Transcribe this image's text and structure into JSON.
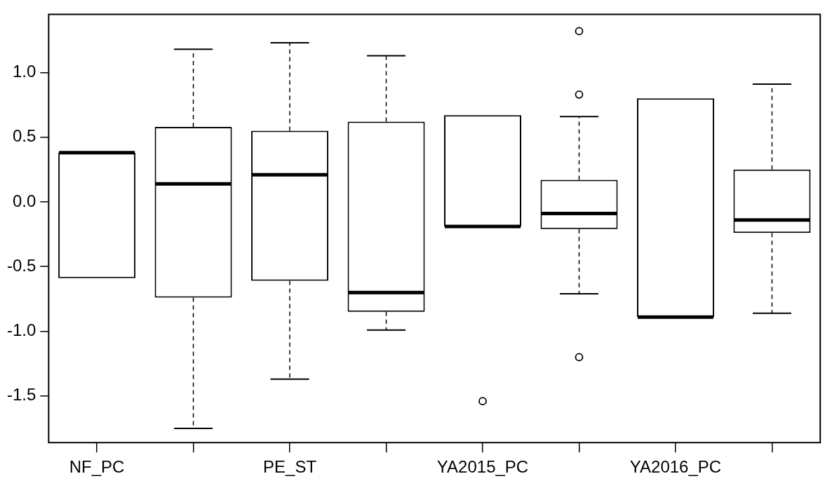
{
  "chart_data": {
    "type": "box",
    "categories": [
      "NF_PC",
      null,
      "PE_ST",
      null,
      "YA2015_PC",
      null,
      "YA2016_PC",
      null
    ],
    "boxes": [
      {
        "low": -0.59,
        "q1": -0.59,
        "median": 0.38,
        "q3": 0.38,
        "high": 0.38
      },
      {
        "low": -1.75,
        "q1": -0.74,
        "median": 0.14,
        "q3": 0.58,
        "high": 1.18
      },
      {
        "low": -1.37,
        "q1": -0.61,
        "median": 0.21,
        "q3": 0.55,
        "high": 1.23
      },
      {
        "low": -0.99,
        "q1": -0.85,
        "median": -0.7,
        "q3": 0.62,
        "high": 1.13
      },
      {
        "low": -0.19,
        "q1": -0.19,
        "median": -0.19,
        "q3": 0.67,
        "high": 0.67,
        "outliers": [
          -1.54
        ]
      },
      {
        "low": -0.71,
        "q1": -0.21,
        "median": -0.09,
        "q3": 0.17,
        "high": 0.66,
        "outliers": [
          1.32,
          0.83,
          -1.2
        ]
      },
      {
        "low": -0.89,
        "q1": -0.89,
        "median": -0.89,
        "q3": 0.8,
        "high": 0.8
      },
      {
        "low": -0.86,
        "q1": -0.24,
        "median": -0.14,
        "q3": 0.25,
        "high": 0.91
      }
    ],
    "color": "#000000",
    "ylim": [
      -1.86,
      1.45
    ],
    "yticks": [
      {
        "value": -1.5,
        "label": "-1.5"
      },
      {
        "value": -1,
        "label": "-1.0"
      },
      {
        "value": -0.5,
        "label": "-0.5"
      },
      {
        "value": 0,
        "label": "0.0"
      },
      {
        "value": 0.5,
        "label": "0.5"
      },
      {
        "value": 1,
        "label": "1.0"
      }
    ],
    "grid": false,
    "legend": false
  }
}
